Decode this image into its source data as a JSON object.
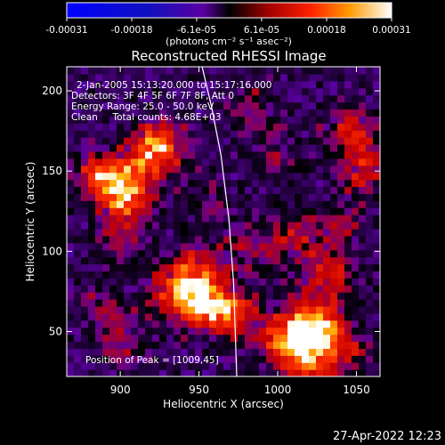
{
  "colorbar": {
    "tick_labels": [
      "-0.00031",
      "-0.00018",
      "-6.1e-05",
      "6.1e-05",
      "0.00018",
      "0.00031"
    ],
    "unit_label": "(photons cm⁻² s⁻¹ asec⁻²)",
    "range": [
      -0.00031,
      0.00031
    ]
  },
  "plot": {
    "title": "Reconstructed RHESSI Image",
    "info_lines": [
      "2-Jan-2005 15:13:20.000 to 15:17:16.000",
      "Detectors: 3F 4F 5F 6F 7F 8F, Att 0",
      "Energy Range: 25.0 - 50.0 keV",
      "Clean     Total counts: 4.68E+03"
    ],
    "peak_label": "Position of Peak = [1009,45]"
  },
  "chart_data": {
    "type": "heatmap",
    "title": "Reconstructed RHESSI Image",
    "xlabel": "Heliocentric X (arcsec)",
    "ylabel": "Heliocentric Y (arcsec)",
    "xlim": [
      866,
      1065
    ],
    "ylim": [
      22,
      215
    ],
    "x_ticks": [
      900,
      950,
      1000,
      1050
    ],
    "y_ticks": [
      50,
      100,
      150,
      200
    ],
    "peak": [
      1009,
      45
    ],
    "limb_points": [
      [
        952,
        215
      ],
      [
        958,
        190
      ],
      [
        964,
        160
      ],
      [
        969,
        120
      ],
      [
        972,
        80
      ],
      [
        973,
        50
      ],
      [
        974,
        22
      ]
    ],
    "blobs": [
      {
        "x": 888,
        "y": 148,
        "value": 0.00026
      },
      {
        "x": 905,
        "y": 135,
        "value": 0.0003
      },
      {
        "x": 920,
        "y": 160,
        "value": 0.00022
      },
      {
        "x": 928,
        "y": 170,
        "value": 0.00018
      },
      {
        "x": 900,
        "y": 110,
        "value": 0.00012
      },
      {
        "x": 935,
        "y": 75,
        "value": 0.00025
      },
      {
        "x": 955,
        "y": 65,
        "value": 0.0003
      },
      {
        "x": 950,
        "y": 90,
        "value": 0.00018
      },
      {
        "x": 975,
        "y": 60,
        "value": 0.0002
      },
      {
        "x": 890,
        "y": 62,
        "value": 0.00015
      },
      {
        "x": 905,
        "y": 40,
        "value": 0.00012
      },
      {
        "x": 1009,
        "y": 45,
        "value": 0.00031
      },
      {
        "x": 1025,
        "y": 55,
        "value": 0.00028
      },
      {
        "x": 1030,
        "y": 85,
        "value": 0.0002
      },
      {
        "x": 1020,
        "y": 30,
        "value": 0.00022
      },
      {
        "x": 1045,
        "y": 40,
        "value": 0.00015
      },
      {
        "x": 1010,
        "y": 110,
        "value": 0.00016
      },
      {
        "x": 1048,
        "y": 175,
        "value": 0.00022
      },
      {
        "x": 1055,
        "y": 150,
        "value": 0.00018
      },
      {
        "x": 985,
        "y": 190,
        "value": 0.00014
      },
      {
        "x": 1000,
        "y": 160,
        "value": 0.0001
      },
      {
        "x": 960,
        "y": 130,
        "value": 0.0001
      },
      {
        "x": 1040,
        "y": 115,
        "value": 0.00012
      },
      {
        "x": 980,
        "y": 100,
        "value": 0.00012
      }
    ]
  },
  "timestamp": "27-Apr-2022 12:23"
}
